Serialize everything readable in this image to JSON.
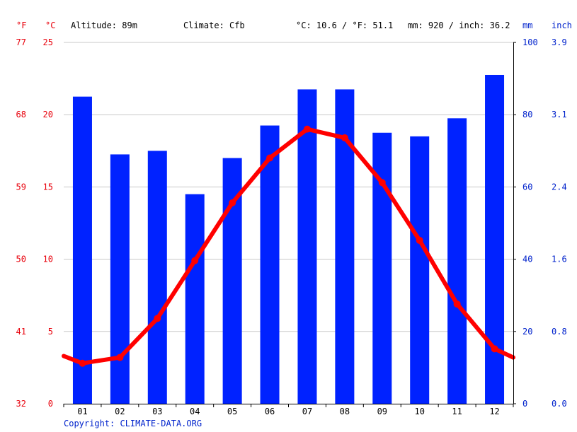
{
  "header": {
    "unit_f": "°F",
    "unit_c": "°C",
    "altitude": "Altitude: 89m",
    "climate": "Climate: Cfb",
    "avg_temp": "°C: 10.6 / °F: 51.1",
    "avg_precip": "mm: 920 / inch: 36.2",
    "unit_mm": "mm",
    "unit_inch": "inch"
  },
  "copyright": "Copyright: CLIMATE-DATA.ORG",
  "colors": {
    "temperature": "#ff0000",
    "precipitation": "#0022ff",
    "grid": "#c8c8c8",
    "axis_text_temp": "#e8000b",
    "axis_text_precip": "#0022cc"
  },
  "chart_data": {
    "type": "bar",
    "categories": [
      "01",
      "02",
      "03",
      "04",
      "05",
      "06",
      "07",
      "08",
      "09",
      "10",
      "11",
      "12"
    ],
    "series": [
      {
        "values": [
          85,
          69,
          70,
          58,
          68,
          77,
          87,
          87,
          75,
          74,
          79,
          91
        ]
      },
      {
        "type": "line",
        "values": [
          2.8,
          3.2,
          5.9,
          9.9,
          13.9,
          17.0,
          19.0,
          18.4,
          15.3,
          11.3,
          6.9,
          3.8
        ],
        "edge_values": [
          3.3,
          3.2
        ]
      }
    ],
    "y_left": {
      "celsius_ticks": [
        "25",
        "20",
        "15",
        "10",
        "5",
        "0"
      ],
      "fahrenheit_ticks": [
        "77",
        "68",
        "59",
        "50",
        "41",
        "32"
      ],
      "ylim": [
        0,
        25
      ]
    },
    "y_right": {
      "mm_ticks": [
        "100",
        "80",
        "60",
        "40",
        "20",
        "0"
      ],
      "inch_ticks": [
        "3.9",
        "3.1",
        "2.4",
        "1.6",
        "0.8",
        "0.0"
      ],
      "ylim": [
        0,
        100
      ]
    },
    "grid": true
  }
}
